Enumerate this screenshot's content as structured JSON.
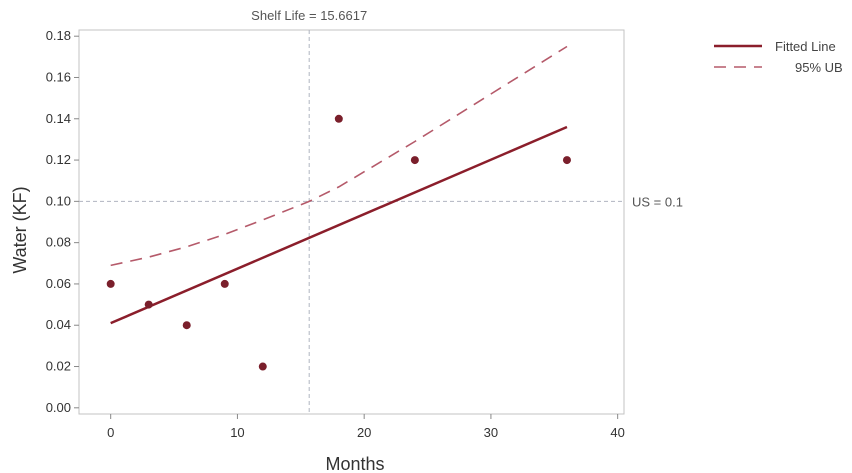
{
  "chart_data": {
    "type": "scatter",
    "xlabel": "Months",
    "ylabel": "Water (KF)",
    "xlim": [
      -2.5,
      40.5
    ],
    "ylim": [
      -0.003,
      0.183
    ],
    "xticks": [
      0,
      10,
      20,
      30,
      40
    ],
    "yticks": [
      0.0,
      0.02,
      0.04,
      0.06,
      0.08,
      0.1,
      0.12,
      0.14,
      0.16,
      0.18
    ],
    "ytick_labels": [
      "0.00",
      "0.02",
      "0.04",
      "0.06",
      "0.08",
      "0.10",
      "0.12",
      "0.14",
      "0.16",
      "0.18"
    ],
    "xtick_labels": [
      "0",
      "10",
      "20",
      "30",
      "40"
    ],
    "grid": false,
    "points": {
      "x": [
        0,
        3,
        6,
        9,
        12,
        18,
        24,
        36
      ],
      "y": [
        0.06,
        0.05,
        0.04,
        0.06,
        0.02,
        0.14,
        0.12,
        0.12
      ],
      "color": "#7a1f2b"
    },
    "fitted_line": {
      "name": "Fitted Line",
      "color": "#8b1e2b",
      "x": [
        0,
        36
      ],
      "y": [
        0.041,
        0.136
      ]
    },
    "upper_bound": {
      "name": "95% UB",
      "color": "#b55a6a",
      "x": [
        0,
        3,
        6,
        9,
        12,
        15.6617,
        18,
        24,
        30,
        36
      ],
      "y": [
        0.069,
        0.073,
        0.078,
        0.084,
        0.091,
        0.1,
        0.107,
        0.129,
        0.152,
        0.175
      ]
    },
    "reference_lines": {
      "vertical": {
        "x": 15.6617,
        "label": "Shelf Life = 15.6617"
      },
      "horizontal": {
        "y": 0.1,
        "label": "US = 0.1"
      },
      "color": "#b0b4c0"
    },
    "legend": {
      "placement": "top-right",
      "entries": [
        "Fitted Line",
        "95% UB"
      ]
    }
  }
}
